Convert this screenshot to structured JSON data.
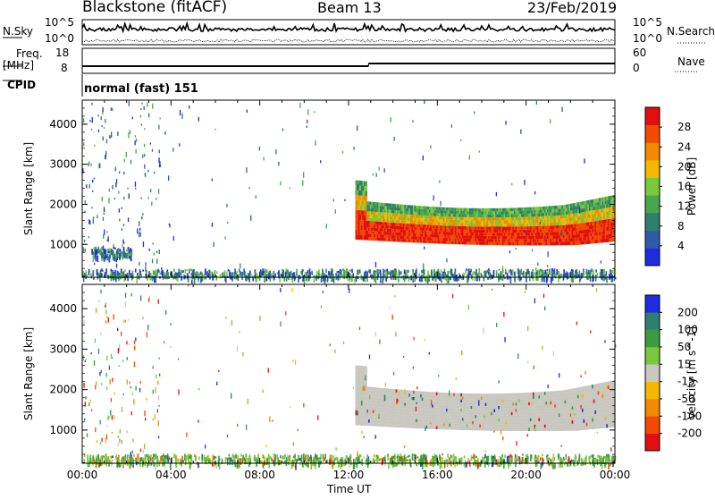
{
  "header": {
    "title": "Blackstone (fitACF)",
    "beam": "Beam 13",
    "date": "23/Feb/2019"
  },
  "noise_panel": {
    "left_label": "N.Sky",
    "right_label": "N.Search",
    "tick_top": "10^5",
    "tick_bottom": "10^0",
    "right_tick_top": "10^5",
    "right_tick_bottom": "10^0"
  },
  "freq_panel": {
    "left_label_1": "Freq.",
    "left_label_2": "[MHz]",
    "right_label": "Nave",
    "left_ticks": [
      "18",
      "8"
    ],
    "right_ticks": [
      "60",
      "0"
    ]
  },
  "cpid_panel": {
    "label": "CPID",
    "value": "normal (fast) 151"
  },
  "x_axis": {
    "label": "Time UT",
    "ticks": [
      "00:00",
      "04:00",
      "08:00",
      "12:00",
      "16:00",
      "20:00",
      "00:00"
    ]
  },
  "colors": {
    "power": [
      "#1f2be0",
      "#2e5aa8",
      "#2f7f6e",
      "#4aa64c",
      "#7ac83c",
      "#f5b800",
      "#f08a00",
      "#f24a00",
      "#e01010"
    ],
    "velocity": [
      "#e01010",
      "#f24a00",
      "#f08a00",
      "#f5b800",
      "#c8c8c0",
      "#7ac83c",
      "#3e9a3e",
      "#2f7f6e",
      "#1f2be0"
    ],
    "ground_scatter": "#c8c8c0"
  },
  "chart_data": [
    {
      "type": "heatmap",
      "title": "",
      "xlabel": "Time UT",
      "ylabel": "Slant Range [km]",
      "xlim": [
        0,
        24
      ],
      "ylim": [
        180,
        4600
      ],
      "yticks": [
        "1000",
        "2000",
        "3000",
        "4000"
      ],
      "colorbar": {
        "label": "Power [dB]",
        "ticks": [
          "4",
          "8",
          "12",
          "16",
          "20",
          "24",
          "28"
        ],
        "range": [
          0,
          32
        ]
      },
      "features": [
        {
          "name": "main echo band",
          "time_start": 12.3,
          "time_end": 24.0,
          "range_low": 1000,
          "range_high": 2400,
          "value": 26
        },
        {
          "name": "near-range band",
          "time_start": 0.0,
          "time_end": 24.0,
          "range_low": 180,
          "range_high": 400,
          "value": 10
        },
        {
          "name": "early patch",
          "time_start": 0.4,
          "time_end": 2.2,
          "range_low": 700,
          "range_high": 950,
          "value": 8
        }
      ]
    },
    {
      "type": "heatmap",
      "title": "",
      "xlabel": "Time UT",
      "ylabel": "Slant Range [km]",
      "xlim": [
        0,
        24
      ],
      "ylim": [
        180,
        4600
      ],
      "yticks": [
        "1000",
        "2000",
        "3000",
        "4000"
      ],
      "colorbar": {
        "label": "Velocity [m s^-1]",
        "ticks": [
          "-200",
          "-100",
          "-50",
          "-15",
          "15",
          "50",
          "100",
          "200"
        ],
        "range": [
          -250,
          250
        ]
      },
      "features": [
        {
          "name": "ground scatter band",
          "time_start": 12.3,
          "time_end": 24.0,
          "range_low": 1000,
          "range_high": 2400,
          "value": 0
        },
        {
          "name": "near-range band",
          "time_start": 0.0,
          "time_end": 24.0,
          "range_low": 180,
          "range_high": 420,
          "value": 30
        }
      ]
    }
  ]
}
